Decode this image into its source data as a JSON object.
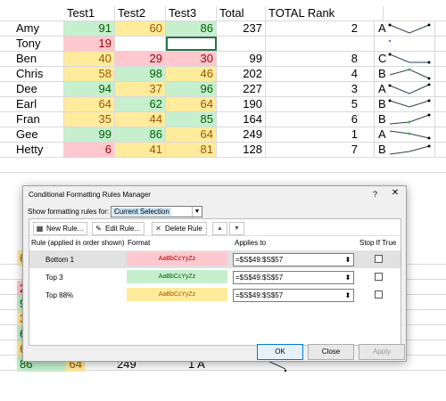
{
  "sheet": {
    "headers": [
      "",
      "Test1",
      "Test2",
      "Test3",
      "Total",
      "TOTAL Rank"
    ],
    "rows": [
      {
        "name": "Amy",
        "t1": "91",
        "t2": "60",
        "t3": "86",
        "total": "237",
        "rank": "2",
        "letter": "A"
      },
      {
        "name": "Tony",
        "t1": "19",
        "t2": "",
        "t3": "",
        "total": "",
        "rank": "",
        "letter": ""
      },
      {
        "name": "Ben",
        "t1": "40",
        "t2": "29",
        "t3": "30",
        "total": "99",
        "rank": "8",
        "letter": "C"
      },
      {
        "name": "Chris",
        "t1": "58",
        "t2": "98",
        "t3": "46",
        "total": "202",
        "rank": "4",
        "letter": "B"
      },
      {
        "name": "Dee",
        "t1": "94",
        "t2": "37",
        "t3": "96",
        "total": "227",
        "rank": "3",
        "letter": "A"
      },
      {
        "name": "Earl",
        "t1": "64",
        "t2": "62",
        "t3": "64",
        "total": "190",
        "rank": "5",
        "letter": "B"
      },
      {
        "name": "Fran",
        "t1": "35",
        "t2": "44",
        "t3": "85",
        "total": "164",
        "rank": "6",
        "letter": "B"
      },
      {
        "name": "Gee",
        "t1": "99",
        "t2": "86",
        "t3": "64",
        "total": "249",
        "rank": "1",
        "letter": "A"
      },
      {
        "name": "Hetty",
        "t1": "6",
        "t2": "41",
        "t3": "81",
        "total": "128",
        "rank": "7",
        "letter": "B"
      }
    ],
    "background_fragments": [
      "6",
      "2",
      "9",
      "3",
      "6",
      "6",
      "86",
      "64",
      "249",
      "1 A"
    ]
  },
  "dialog": {
    "title": "Conditional Formatting Rules Manager",
    "help": "?",
    "close": "✕",
    "show_label": "Show formatting rules for:",
    "show_value": "Current Selection",
    "toolbar": {
      "new_rule": "New Rule...",
      "edit_rule": "Edit Rule...",
      "delete_rule": "Delete Rule",
      "move_up": "▲",
      "move_down": "▼"
    },
    "columns": {
      "rule": "Rule (applied in order shown)",
      "format": "Format",
      "applies_to": "Applies to",
      "stop_if_true": "Stop If True"
    },
    "rules": [
      {
        "name": "Bottom 1",
        "preview": "AaBbCcYyZz",
        "applies": "=$S$49:$S$57",
        "style": "bad"
      },
      {
        "name": "Top 3",
        "preview": "AaBbCcYyZz",
        "applies": "=$S$49:$S$57",
        "style": "good"
      },
      {
        "name": "Top 88%",
        "preview": "AaBbCcYyZz",
        "applies": "=$S$49:$S$57",
        "style": "neutral"
      }
    ],
    "buttons": {
      "ok": "OK",
      "close": "Close",
      "apply": "Apply"
    }
  },
  "colors": {
    "good_fill": "#c6efce",
    "good_text": "#006100",
    "bad_fill": "#ffc7ce",
    "bad_text": "#9c0006",
    "neutral_fill": "#ffeb9c",
    "neutral_text": "#9c5700"
  }
}
